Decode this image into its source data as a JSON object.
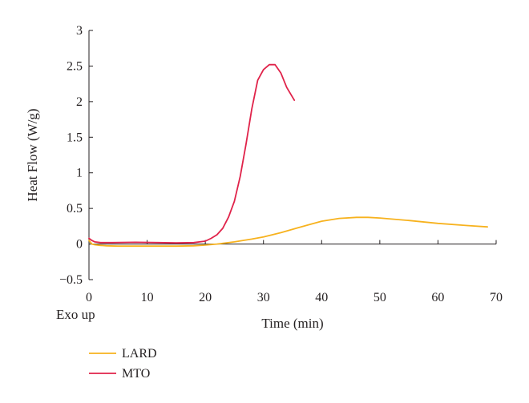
{
  "chart_data": {
    "type": "line",
    "title": "",
    "xlabel": "Time (min)",
    "ylabel": "Heat Flow (W/g)",
    "corner_label": "Exo up",
    "xlim": [
      0,
      70
    ],
    "ylim": [
      -0.5,
      3
    ],
    "x_ticks": [
      0,
      10,
      20,
      30,
      40,
      50,
      60,
      70
    ],
    "y_ticks": [
      -0.5,
      0,
      0.5,
      1,
      1.5,
      2,
      2.5,
      3
    ],
    "y_tick_labels": [
      "−0.5",
      "0",
      "0.5",
      "1",
      "1.5",
      "2",
      "2.5",
      "3"
    ],
    "grid": false,
    "legend_position": "bottom-left",
    "series": [
      {
        "name": "LARD",
        "color": "#f7b21e",
        "x": [
          0,
          0.5,
          1,
          2,
          3,
          5,
          8,
          10,
          15,
          18,
          20,
          22,
          25,
          28,
          30,
          33,
          36,
          40,
          43,
          46,
          48,
          50,
          55,
          60,
          65,
          68.5
        ],
        "y": [
          0.05,
          0.0,
          -0.01,
          -0.02,
          -0.025,
          -0.03,
          -0.03,
          -0.03,
          -0.03,
          -0.025,
          -0.015,
          0.0,
          0.03,
          0.07,
          0.1,
          0.16,
          0.23,
          0.32,
          0.36,
          0.375,
          0.375,
          0.365,
          0.33,
          0.29,
          0.26,
          0.24
        ]
      },
      {
        "name": "MTO",
        "color": "#e0234a",
        "x": [
          0,
          0.5,
          1,
          2,
          4,
          8,
          12,
          15,
          18,
          20,
          21,
          22,
          23,
          24,
          25,
          26,
          27,
          28,
          29,
          30,
          31,
          32,
          33,
          34,
          35.3
        ],
        "y": [
          0.08,
          0.05,
          0.03,
          0.02,
          0.02,
          0.025,
          0.02,
          0.015,
          0.02,
          0.04,
          0.08,
          0.13,
          0.22,
          0.38,
          0.6,
          0.95,
          1.4,
          1.9,
          2.3,
          2.45,
          2.52,
          2.52,
          2.4,
          2.2,
          2.02
        ]
      }
    ]
  }
}
